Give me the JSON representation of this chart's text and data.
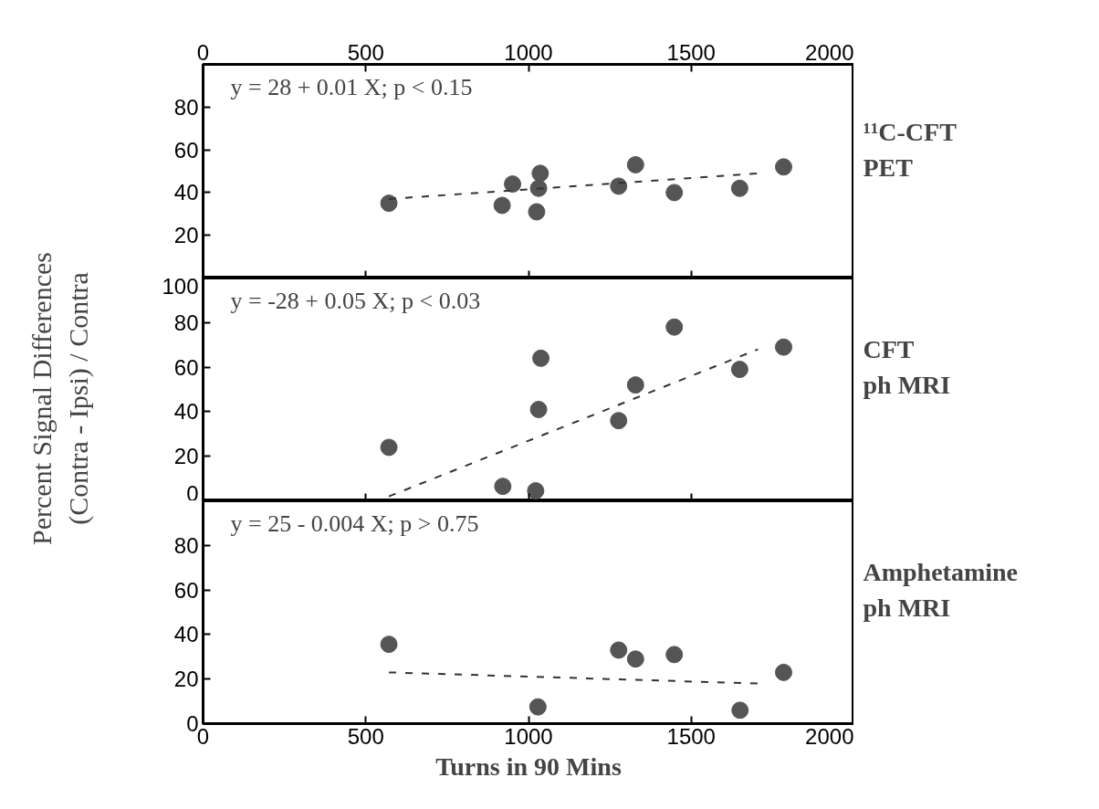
{
  "chart_data": [
    {
      "type": "scatter",
      "title": "¹¹C-CFT\nPET",
      "xlim": [
        0,
        2000
      ],
      "xticks": [
        0,
        500,
        1000,
        1500,
        2000
      ],
      "x2lim": [
        0,
        2000
      ],
      "x2ticks": [
        0,
        500,
        1000,
        1500,
        2000
      ],
      "ylim": [
        0,
        100
      ],
      "yticks": [
        20,
        40,
        60,
        80
      ],
      "tick_labels": "y",
      "annotations": [
        "y = 28 + 0.01  X; p < 0.15"
      ],
      "series": [
        {
          "marker": "circle",
          "color": "#555555",
          "x": [
            571,
            919,
            951,
            1025,
            1036,
            1031,
            1277,
            1329,
            1448,
            1649,
            1784
          ],
          "values": [
            35,
            34,
            44,
            31,
            49,
            42,
            43,
            53,
            40,
            42,
            52
          ]
        },
        {
          "type": "line",
          "line_style": "dashed",
          "color": "#333333",
          "x": [
            571,
            1705
          ],
          "values": [
            37,
            49
          ]
        }
      ]
    },
    {
      "type": "scatter",
      "title": "CFT\nph MRI",
      "ylabel": "Percent Signal Differences\n(Contra - Ipsi) / Contra",
      "xlim": [
        0,
        2000
      ],
      "xticks": [
        0,
        500,
        1000,
        1500,
        2000
      ],
      "ylim": [
        0,
        100
      ],
      "yticks": [
        0,
        20,
        40,
        60,
        80,
        100
      ],
      "tick_labels": "y",
      "annotations": [
        "y = -28 + 0.05  X; p < 0.03"
      ],
      "series": [
        {
          "marker": "circle",
          "color": "#555555",
          "x": [
            571,
            921,
            1022,
            1031,
            1038,
            1277,
            1329,
            1448,
            1649,
            1784
          ],
          "values": [
            24,
            6.5,
            4.5,
            41,
            64,
            36,
            52,
            78,
            59,
            69
          ]
        },
        {
          "type": "line",
          "line_style": "dashed",
          "color": "#333333",
          "x": [
            571,
            1705
          ],
          "values": [
            2,
            68
          ]
        }
      ]
    },
    {
      "type": "scatter",
      "title": "Amphetamine\nph MRI",
      "xlabel": "Turns in 90 Mins",
      "xlim": [
        0,
        2000
      ],
      "xticks": [
        0,
        500,
        1000,
        1500,
        2000
      ],
      "ylim": [
        0,
        100
      ],
      "yticks": [
        0,
        20,
        40,
        60,
        80
      ],
      "annotations": [
        "y = 25  -  0.004  X; p > 0.75"
      ],
      "series": [
        {
          "marker": "circle",
          "color": "#555555",
          "x": [
            571,
            1029,
            1277,
            1329,
            1448,
            1650,
            1784
          ],
          "values": [
            35.6,
            7.5,
            33,
            29,
            31,
            6,
            23
          ]
        },
        {
          "type": "line",
          "line_style": "dashed",
          "color": "#333333",
          "x": [
            571,
            1705
          ],
          "values": [
            23,
            18
          ]
        }
      ]
    }
  ]
}
